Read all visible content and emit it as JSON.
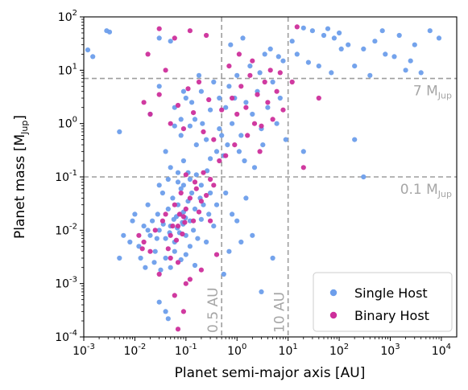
{
  "chart_data": {
    "type": "scatter",
    "title": "",
    "xlabel": "Planet semi-major axis [AU]",
    "ylabel": "Planet mass [M",
    "ylabel_sub": "Jup",
    "ylabel_tail": "]",
    "xscale": "log",
    "yscale": "log",
    "xlim": [
      0.001,
      20000
    ],
    "ylim": [
      0.0001,
      100
    ],
    "grid": false,
    "legend_position": "lower-right",
    "x_ticks": [
      {
        "value": 0.001,
        "base": "10",
        "exp": "-3"
      },
      {
        "value": 0.01,
        "base": "10",
        "exp": "-2"
      },
      {
        "value": 0.1,
        "base": "10",
        "exp": "-1"
      },
      {
        "value": 1,
        "base": "10",
        "exp": "0"
      },
      {
        "value": 10,
        "base": "10",
        "exp": "1"
      },
      {
        "value": 100,
        "base": "10",
        "exp": "2"
      },
      {
        "value": 1000,
        "base": "10",
        "exp": "3"
      },
      {
        "value": 10000,
        "base": "10",
        "exp": "4"
      }
    ],
    "y_ticks": [
      {
        "value": 0.0001,
        "base": "10",
        "exp": "-4"
      },
      {
        "value": 0.001,
        "base": "10",
        "exp": "-3"
      },
      {
        "value": 0.01,
        "base": "10",
        "exp": "-2"
      },
      {
        "value": 0.1,
        "base": "10",
        "exp": "-1"
      },
      {
        "value": 1,
        "base": "10",
        "exp": "0"
      },
      {
        "value": 10,
        "base": "10",
        "exp": "1"
      },
      {
        "value": 100,
        "base": "10",
        "exp": "2"
      }
    ],
    "reference_lines": [
      {
        "axis": "y",
        "value": 7,
        "label": "7 M",
        "sub": "Jup"
      },
      {
        "axis": "y",
        "value": 0.1,
        "label": "0.1 M",
        "sub": "Jup"
      },
      {
        "axis": "x",
        "value": 0.5,
        "label": "0.5 AU"
      },
      {
        "axis": "x",
        "value": 10,
        "label": "10 AU"
      }
    ],
    "series": [
      {
        "name": "Single Host",
        "color": "#6d9eeb",
        "points": [
          [
            0.0028,
            55
          ],
          [
            0.0032,
            52
          ],
          [
            0.0012,
            24
          ],
          [
            0.0015,
            18
          ],
          [
            0.03,
            40
          ],
          [
            0.05,
            35
          ],
          [
            20,
            62
          ],
          [
            30,
            55
          ],
          [
            50,
            45
          ],
          [
            80,
            40
          ],
          [
            150,
            30
          ],
          [
            300,
            25
          ],
          [
            500,
            35
          ],
          [
            800,
            20
          ],
          [
            1500,
            45
          ],
          [
            3000,
            30
          ],
          [
            6000,
            55
          ],
          [
            9000,
            40
          ],
          [
            2500,
            15
          ],
          [
            12,
            35
          ],
          [
            15,
            20
          ],
          [
            25,
            14
          ],
          [
            40,
            12
          ],
          [
            70,
            9
          ],
          [
            110,
            25
          ],
          [
            200,
            12
          ],
          [
            400,
            8
          ],
          [
            700,
            55
          ],
          [
            1200,
            18
          ],
          [
            2000,
            10
          ],
          [
            4000,
            9
          ],
          [
            60,
            60
          ],
          [
            100,
            50
          ],
          [
            0.005,
            0.7
          ],
          [
            0.02,
            1.5
          ],
          [
            0.03,
            5
          ],
          [
            0.04,
            0.3
          ],
          [
            0.06,
            2
          ],
          [
            0.08,
            0.6
          ],
          [
            0.1,
            3
          ],
          [
            0.12,
            0.9
          ],
          [
            0.15,
            1.2
          ],
          [
            0.2,
            4
          ],
          [
            0.25,
            0.5
          ],
          [
            0.3,
            1.8
          ],
          [
            0.35,
            6
          ],
          [
            0.4,
            0.3
          ],
          [
            0.05,
            0.15
          ],
          [
            0.07,
            0.08
          ],
          [
            0.09,
            0.2
          ],
          [
            0.11,
            0.12
          ],
          [
            0.6,
            2
          ],
          [
            0.7,
            5
          ],
          [
            0.8,
            1
          ],
          [
            0.9,
            3
          ],
          [
            1.0,
            8
          ],
          [
            1.2,
            0.6
          ],
          [
            1.5,
            2.5
          ],
          [
            1.8,
            12
          ],
          [
            2.0,
            1.5
          ],
          [
            2.5,
            4
          ],
          [
            3.0,
            0.8
          ],
          [
            3.5,
            20
          ],
          [
            4.0,
            2
          ],
          [
            5.0,
            6
          ],
          [
            6.0,
            1
          ],
          [
            7.0,
            3
          ],
          [
            8.0,
            15
          ],
          [
            9.0,
            0.5
          ],
          [
            0.55,
            0.25
          ],
          [
            0.65,
            0.4
          ],
          [
            1.1,
            0.3
          ],
          [
            1.4,
            0.2
          ],
          [
            2.2,
            0.15
          ],
          [
            3.2,
            0.4
          ],
          [
            0.75,
            30
          ],
          [
            1.3,
            40
          ],
          [
            2.8,
            9
          ],
          [
            4.5,
            25
          ],
          [
            6.5,
            18
          ],
          [
            0.45,
            0.8
          ],
          [
            0.01,
            0.02
          ],
          [
            0.012,
            0.005
          ],
          [
            0.015,
            0.012
          ],
          [
            0.018,
            0.03
          ],
          [
            0.02,
            0.008
          ],
          [
            0.022,
            0.015
          ],
          [
            0.025,
            0.004
          ],
          [
            0.028,
            0.02
          ],
          [
            0.03,
            0.01
          ],
          [
            0.035,
            0.05
          ],
          [
            0.04,
            0.007
          ],
          [
            0.045,
            0.025
          ],
          [
            0.05,
            0.012
          ],
          [
            0.055,
            0.04
          ],
          [
            0.06,
            0.006
          ],
          [
            0.065,
            0.018
          ],
          [
            0.07,
            0.03
          ],
          [
            0.075,
            0.009
          ],
          [
            0.08,
            0.06
          ],
          [
            0.085,
            0.014
          ],
          [
            0.09,
            0.022
          ],
          [
            0.1,
            0.008
          ],
          [
            0.11,
            0.035
          ],
          [
            0.12,
            0.015
          ],
          [
            0.13,
            0.05
          ],
          [
            0.14,
            0.01
          ],
          [
            0.15,
            0.025
          ],
          [
            0.17,
            0.007
          ],
          [
            0.19,
            0.04
          ],
          [
            0.2,
            0.016
          ],
          [
            0.22,
            0.03
          ],
          [
            0.25,
            0.006
          ],
          [
            0.28,
            0.02
          ],
          [
            0.3,
            0.05
          ],
          [
            0.35,
            0.012
          ],
          [
            0.4,
            0.03
          ],
          [
            0.008,
            0.006
          ],
          [
            0.006,
            0.008
          ],
          [
            0.005,
            0.003
          ],
          [
            0.009,
            0.015
          ],
          [
            0.013,
            0.003
          ],
          [
            0.016,
            0.002
          ],
          [
            0.024,
            0.0025
          ],
          [
            0.032,
            0.0018
          ],
          [
            0.04,
            0.003
          ],
          [
            0.05,
            0.002
          ],
          [
            0.06,
            0.004
          ],
          [
            0.08,
            0.0028
          ],
          [
            0.1,
            0.0035
          ],
          [
            0.12,
            0.005
          ],
          [
            0.15,
            0.0022
          ],
          [
            0.03,
            0.07
          ],
          [
            0.045,
            0.09
          ],
          [
            0.07,
            0.12
          ],
          [
            0.09,
            0.07
          ],
          [
            0.12,
            0.09
          ],
          [
            0.16,
            0.11
          ],
          [
            0.2,
            0.07
          ],
          [
            0.26,
            0.13
          ],
          [
            0.6,
            0.05
          ],
          [
            0.8,
            0.02
          ],
          [
            1.0,
            0.015
          ],
          [
            1.5,
            0.04
          ],
          [
            2.0,
            0.008
          ],
          [
            0.7,
            0.004
          ],
          [
            1.2,
            0.006
          ],
          [
            0.55,
            0.0015
          ],
          [
            0.03,
            0.00045
          ],
          [
            0.045,
            0.00022
          ],
          [
            0.04,
            0.0003
          ],
          [
            3.0,
            0.0007
          ],
          [
            0.018,
            0.01
          ],
          [
            0.027,
            0.007
          ],
          [
            0.036,
            0.013
          ],
          [
            0.048,
            0.009
          ],
          [
            0.058,
            0.016
          ],
          [
            0.068,
            0.011
          ],
          [
            0.078,
            0.02
          ],
          [
            0.088,
            0.013
          ],
          [
            0.098,
            0.017
          ],
          [
            0.21,
            1
          ],
          [
            0.16,
            0.4
          ],
          [
            0.08,
            1.2
          ],
          [
            0.13,
            2.5
          ],
          [
            0.06,
            0.9
          ],
          [
            0.09,
            4
          ],
          [
            0.18,
            8
          ],
          [
            0.3,
            0.22
          ],
          [
            0.5,
            0.6
          ],
          [
            0.45,
            3
          ],
          [
            200,
            0.5
          ],
          [
            300,
            0.1
          ],
          [
            20,
            0.3
          ],
          [
            5,
            0.003
          ]
        ]
      },
      {
        "name": "Binary Host",
        "color": "#cd2f9b",
        "points": [
          [
            0.03,
            60
          ],
          [
            0.12,
            55
          ],
          [
            0.25,
            45
          ],
          [
            0.06,
            40
          ],
          [
            0.018,
            20
          ],
          [
            0.04,
            10
          ],
          [
            0.015,
            2.5
          ],
          [
            0.02,
            1.5
          ],
          [
            0.03,
            3.5
          ],
          [
            0.05,
            1.0
          ],
          [
            0.07,
            2.2
          ],
          [
            0.09,
            0.8
          ],
          [
            0.11,
            4.5
          ],
          [
            0.14,
            1.6
          ],
          [
            0.18,
            6
          ],
          [
            0.22,
            0.7
          ],
          [
            0.28,
            2.8
          ],
          [
            0.8,
            3
          ],
          [
            1.0,
            1.5
          ],
          [
            1.2,
            5
          ],
          [
            1.5,
            2
          ],
          [
            1.8,
            8
          ],
          [
            2.2,
            1
          ],
          [
            2.5,
            3.5
          ],
          [
            3.0,
            0.9
          ],
          [
            3.5,
            6
          ],
          [
            4.0,
            2.5
          ],
          [
            5.0,
            1.2
          ],
          [
            6.0,
            4
          ],
          [
            7.0,
            9
          ],
          [
            8.0,
            1.8
          ],
          [
            0.9,
            0.4
          ],
          [
            1.6,
            0.6
          ],
          [
            2.8,
            0.3
          ],
          [
            0.7,
            12
          ],
          [
            1.1,
            20
          ],
          [
            2.0,
            15
          ],
          [
            4.5,
            10
          ],
          [
            15,
            65
          ],
          [
            40,
            3
          ],
          [
            20,
            0.15
          ],
          [
            12,
            6
          ],
          [
            0.04,
            0.02
          ],
          [
            0.05,
            0.008
          ],
          [
            0.06,
            0.03
          ],
          [
            0.07,
            0.012
          ],
          [
            0.08,
            0.05
          ],
          [
            0.09,
            0.018
          ],
          [
            0.1,
            0.025
          ],
          [
            0.12,
            0.04
          ],
          [
            0.14,
            0.015
          ],
          [
            0.16,
            0.06
          ],
          [
            0.18,
            0.022
          ],
          [
            0.2,
            0.035
          ],
          [
            0.25,
            0.045
          ],
          [
            0.3,
            0.015
          ],
          [
            0.35,
            0.07
          ],
          [
            0.1,
            0.11
          ],
          [
            0.15,
            0.08
          ],
          [
            0.22,
            0.12
          ],
          [
            0.3,
            0.09
          ],
          [
            0.02,
            0.004
          ],
          [
            0.03,
            0.0015
          ],
          [
            0.05,
            0.003
          ],
          [
            0.07,
            0.0025
          ],
          [
            0.1,
            0.001
          ],
          [
            0.12,
            0.0012
          ],
          [
            0.07,
            0.00014
          ],
          [
            0.09,
            0.0003
          ],
          [
            0.06,
            0.0006
          ],
          [
            0.045,
            0.0045
          ],
          [
            0.065,
            0.0065
          ],
          [
            0.085,
            0.0085
          ],
          [
            0.2,
            0.0018
          ],
          [
            0.4,
            0.0035
          ],
          [
            0.015,
            0.006
          ],
          [
            0.025,
            0.01
          ],
          [
            0.035,
            0.015
          ],
          [
            0.055,
            0.012
          ],
          [
            0.075,
            0.02
          ],
          [
            0.095,
            0.014
          ],
          [
            0.6,
            0.25
          ],
          [
            0.35,
            0.5
          ],
          [
            0.5,
            1.8
          ],
          [
            0.45,
            0.2
          ],
          [
            0.014,
            0.0045
          ],
          [
            0.012,
            0.008
          ]
        ]
      }
    ]
  }
}
